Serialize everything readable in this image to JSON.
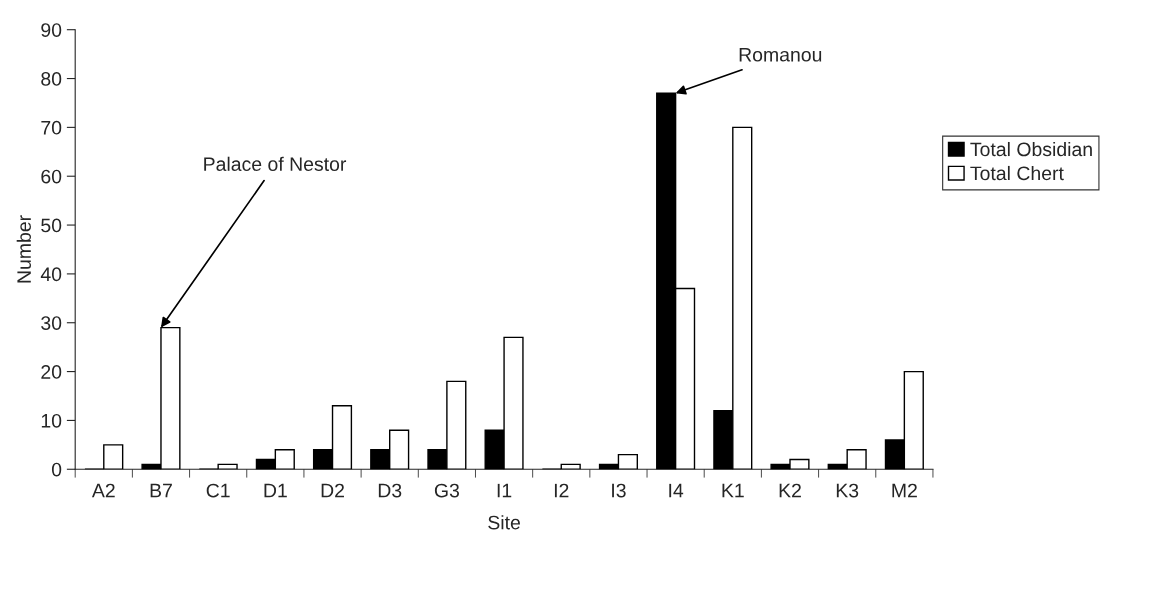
{
  "chart_data": {
    "type": "bar",
    "xlabel": "Site",
    "ylabel": "Number",
    "categories": [
      "A2",
      "B7",
      "C1",
      "D1",
      "D2",
      "D3",
      "G3",
      "I1",
      "I2",
      "I3",
      "I4",
      "K1",
      "K2",
      "K3",
      "M2"
    ],
    "series": [
      {
        "name": "Total Obsidian",
        "color": "#000000",
        "values": [
          0,
          1,
          0,
          2,
          4,
          4,
          4,
          8,
          0,
          1,
          77,
          12,
          1,
          1,
          6
        ]
      },
      {
        "name": "Total Chert",
        "color": "#ffffff",
        "values": [
          5,
          29,
          1,
          4,
          13,
          8,
          18,
          27,
          1,
          3,
          37,
          70,
          2,
          4,
          20
        ]
      }
    ],
    "ylim": [
      0,
      90
    ],
    "yticks": [
      0,
      10,
      20,
      30,
      40,
      50,
      60,
      70,
      80,
      90
    ],
    "annotations": [
      {
        "text": "Palace of Nestor",
        "x": "B7",
        "y": 29
      },
      {
        "text": "Romanou",
        "x": "I4",
        "y": 77
      }
    ],
    "grid": false,
    "legend": "right"
  }
}
